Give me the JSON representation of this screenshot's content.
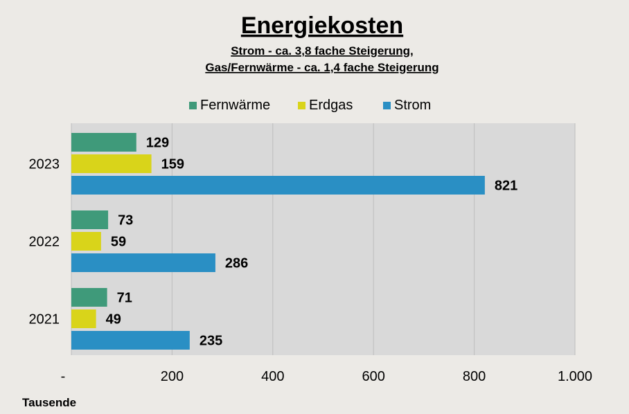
{
  "chart_data": {
    "type": "bar",
    "orientation": "horizontal",
    "title": "Energiekosten",
    "subtitle": [
      "Strom - ca. 3,8 fache Steigerung,",
      "Gas/Fernwärme - ca. 1,4 fache Steigerung"
    ],
    "categories": [
      "2023",
      "2022",
      "2021"
    ],
    "series": [
      {
        "name": "Fernwärme",
        "color": "#3f9a7a",
        "values": [
          129,
          73,
          71
        ]
      },
      {
        "name": "Erdgas",
        "color": "#d9d41a",
        "values": [
          159,
          59,
          49
        ]
      },
      {
        "name": "Strom",
        "color": "#2a8fc4",
        "values": [
          821,
          286,
          235
        ]
      }
    ],
    "xlim": [
      0,
      1000
    ],
    "x_ticks": [
      0,
      200,
      400,
      600,
      800,
      1000
    ],
    "x_tick_labels": [
      "-",
      "200",
      "400",
      "600",
      "800",
      "1.000"
    ],
    "unit_label": "Tausende",
    "legend_position": "top",
    "grid": "vertical",
    "plot_background": "#d9d9d9"
  }
}
